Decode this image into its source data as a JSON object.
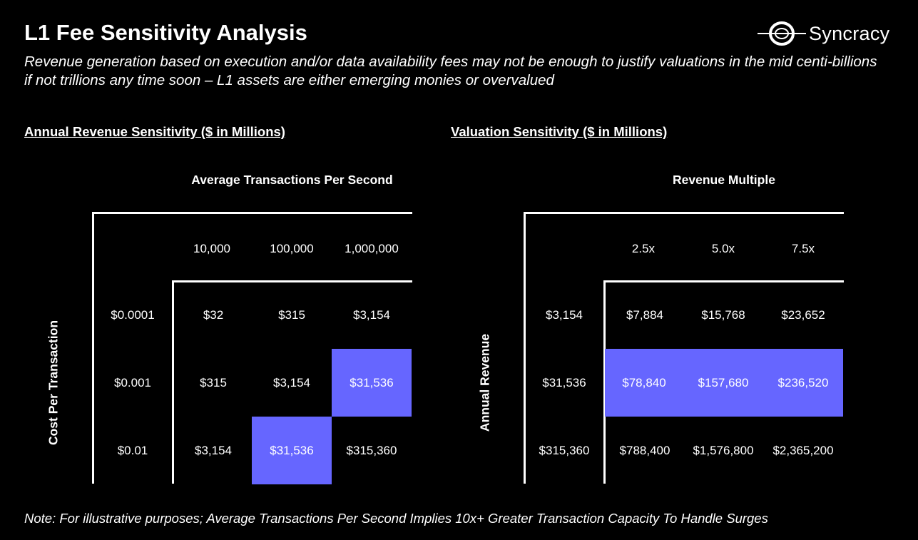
{
  "header": {
    "title": "L1 Fee Sensitivity Analysis",
    "subtitle": "Revenue generation based on execution and/or data availability fees may not be enough to justify valuations in the mid centi-billions if not trillions any time soon – L1 assets are either emerging monies or overvalued",
    "logo": "Syncracy"
  },
  "accent_color": "#6666ff",
  "revenue_table": {
    "heading": "Annual Revenue Sensitivity ($ in Millions)",
    "column_axis": "Average Transactions Per Second",
    "row_axis": "Cost Per Transaction",
    "columns": [
      "10,000",
      "100,000",
      "1,000,000"
    ],
    "rows": [
      {
        "label": "$0.0001",
        "values": [
          "$32",
          "$315",
          "$3,154"
        ]
      },
      {
        "label": "$0.001",
        "values": [
          "$315",
          "$3,154",
          "$31,536"
        ]
      },
      {
        "label": "$0.01",
        "values": [
          "$3,154",
          "$31,536",
          "$315,360"
        ]
      }
    ],
    "highlighted": [
      [
        1,
        2
      ],
      [
        2,
        1
      ]
    ]
  },
  "valuation_table": {
    "heading": "Valuation Sensitivity ($ in Millions)",
    "column_axis": "Revenue Multiple",
    "row_axis": "Annual Revenue",
    "columns": [
      "2.5x",
      "5.0x",
      "7.5x"
    ],
    "rows": [
      {
        "label": "$3,154",
        "values": [
          "$7,884",
          "$15,768",
          "$23,652"
        ]
      },
      {
        "label": "$31,536",
        "values": [
          "$78,840",
          "$157,680",
          "$236,520"
        ]
      },
      {
        "label": "$315,360",
        "values": [
          "$788,400",
          "$1,576,800",
          "$2,365,200"
        ]
      }
    ],
    "highlighted": [
      [
        1,
        0
      ],
      [
        1,
        1
      ],
      [
        1,
        2
      ]
    ]
  },
  "footer": {
    "note": "Note: For illustrative purposes; Average Transactions Per Second Implies 10x+ Greater Transaction Capacity To Handle Surges"
  }
}
